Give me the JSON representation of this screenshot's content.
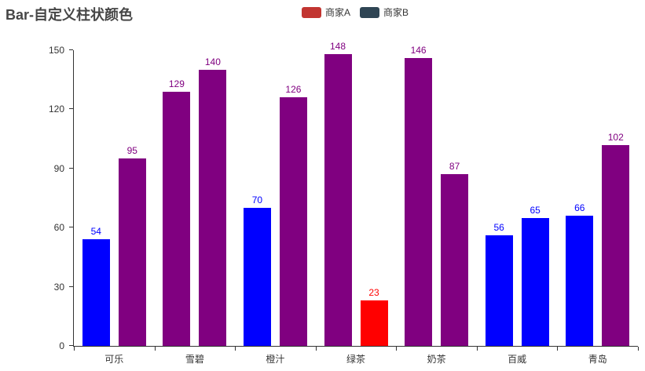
{
  "title": "Bar-自定义柱状颜色",
  "legend": {
    "items": [
      {
        "label": "商家A",
        "color": "#c23531"
      },
      {
        "label": "商家B",
        "color": "#2f4554"
      }
    ]
  },
  "chart_data": {
    "type": "bar",
    "title": "Bar-自定义柱状颜色",
    "categories": [
      "可乐",
      "雪碧",
      "橙汁",
      "绿茶",
      "奶茶",
      "百威",
      "青岛"
    ],
    "series": [
      {
        "name": "商家A",
        "values": [
          54,
          129,
          70,
          148,
          146,
          56,
          66
        ],
        "bar_colors": [
          "#0000ff",
          "#800080",
          "#0000ff",
          "#800080",
          "#800080",
          "#0000ff",
          "#0000ff"
        ]
      },
      {
        "name": "商家B",
        "values": [
          95,
          140,
          126,
          23,
          87,
          65,
          102
        ],
        "bar_colors": [
          "#800080",
          "#800080",
          "#800080",
          "#ff0000",
          "#800080",
          "#0000ff",
          "#800080"
        ]
      }
    ],
    "value_labels_shown": true,
    "value_label_color": "same as bar",
    "xlabel": "",
    "ylabel": "",
    "ylim": [
      0,
      150
    ],
    "yticks": [
      0,
      30,
      60,
      90,
      120,
      150
    ],
    "grid": false,
    "legend_position": "top-center",
    "axis_color": "#333333",
    "title_color": "#464646"
  }
}
